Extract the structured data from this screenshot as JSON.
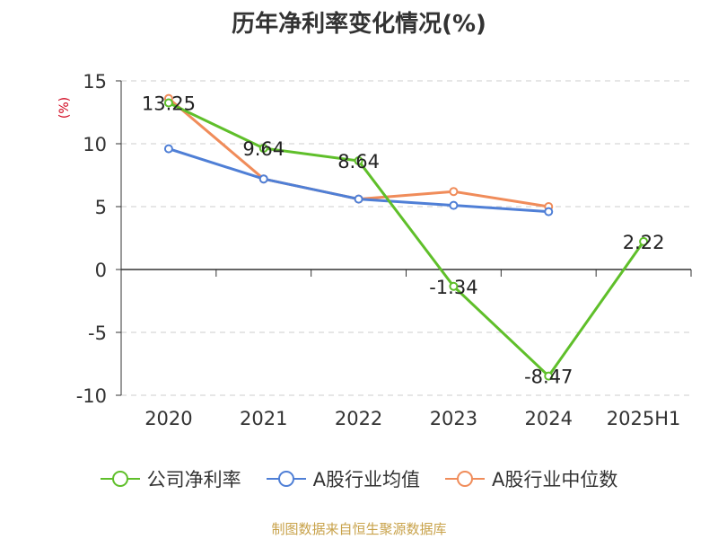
{
  "chart_data": {
    "type": "line",
    "title": "历年净利率变化情况(%)",
    "ylabel": "(%)",
    "categories": [
      "2020",
      "2021",
      "2022",
      "2023",
      "2024",
      "2025H1"
    ],
    "ylim": [
      -10,
      15
    ],
    "yticks": [
      15,
      10,
      5,
      0,
      -5,
      -10
    ],
    "grid": true,
    "legend_position": "bottom",
    "series": [
      {
        "name": "公司净利率",
        "color": "#5fbf2a",
        "values": [
          13.25,
          9.64,
          8.64,
          -1.34,
          -8.47,
          2.22
        ],
        "labels": [
          "13.25",
          "9.64",
          "8.64",
          "-1.34",
          "-8.47",
          "2.22"
        ]
      },
      {
        "name": "A股行业均值",
        "color": "#4f7fd6",
        "values": [
          9.6,
          7.2,
          5.6,
          5.1,
          4.6,
          null
        ]
      },
      {
        "name": "A股行业中位数",
        "color": "#f08c5a",
        "values": [
          13.6,
          7.2,
          5.6,
          6.2,
          5.0,
          null
        ]
      }
    ]
  },
  "source": "制图数据来自恒生聚源数据库"
}
